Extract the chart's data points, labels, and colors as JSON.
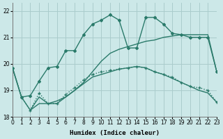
{
  "xlabel": "Humidex (Indice chaleur)",
  "bg_color": "#cce8e8",
  "grid_color": "#aacccc",
  "line_color": "#2a7a6a",
  "xlim": [
    0,
    23
  ],
  "ylim": [
    18,
    22.3
  ],
  "yticks": [
    18,
    19,
    20,
    21,
    22
  ],
  "xticks": [
    0,
    1,
    2,
    3,
    4,
    5,
    6,
    7,
    8,
    9,
    10,
    11,
    12,
    13,
    14,
    15,
    16,
    17,
    18,
    19,
    20,
    21,
    22,
    23
  ],
  "lineA_x": [
    0,
    1,
    2,
    3,
    4,
    5,
    6,
    7,
    8,
    9,
    10,
    11,
    12,
    13,
    14,
    15,
    16,
    17,
    18,
    19,
    20,
    21,
    22,
    23
  ],
  "lineA_y": [
    19.85,
    18.75,
    18.8,
    19.35,
    19.85,
    19.9,
    20.5,
    20.5,
    21.1,
    21.5,
    21.65,
    21.85,
    21.65,
    20.6,
    20.6,
    21.75,
    21.75,
    21.5,
    21.15,
    21.1,
    21.0,
    21.0,
    21.0,
    19.7
  ],
  "lineB_x": [
    0,
    1,
    2,
    3,
    4,
    5,
    6,
    7,
    8,
    9,
    10,
    11,
    12,
    13,
    14,
    15,
    16,
    17,
    18,
    19,
    20,
    21,
    22,
    23
  ],
  "lineB_y": [
    19.85,
    18.75,
    18.25,
    18.75,
    18.5,
    18.5,
    18.75,
    19.0,
    19.25,
    19.5,
    19.6,
    19.7,
    19.8,
    19.85,
    19.9,
    19.85,
    19.7,
    19.6,
    19.45,
    19.3,
    19.15,
    19.0,
    18.9,
    18.55
  ],
  "lineC_x": [
    2,
    3,
    4,
    5,
    6,
    7,
    8,
    9,
    10,
    11,
    12,
    13,
    14,
    15,
    16,
    17,
    18,
    19,
    20,
    21,
    22,
    23
  ],
  "lineC_y": [
    18.25,
    18.5,
    18.5,
    18.6,
    18.75,
    19.0,
    19.3,
    19.7,
    20.1,
    20.4,
    20.55,
    20.65,
    20.75,
    20.85,
    20.9,
    21.0,
    21.05,
    21.1,
    21.1,
    21.1,
    21.1,
    19.7
  ],
  "lineD_x": [
    0,
    1,
    2,
    3,
    4,
    5,
    6,
    7,
    8,
    9,
    10,
    11,
    12,
    13,
    14,
    15,
    16,
    17,
    18,
    19,
    20,
    21,
    22,
    23
  ],
  "lineD_y": [
    19.85,
    18.75,
    18.25,
    18.9,
    18.5,
    18.5,
    18.85,
    19.1,
    19.4,
    19.6,
    19.7,
    19.75,
    19.8,
    19.85,
    19.9,
    19.85,
    19.7,
    19.6,
    19.5,
    19.3,
    19.15,
    19.1,
    19.0,
    18.55
  ]
}
